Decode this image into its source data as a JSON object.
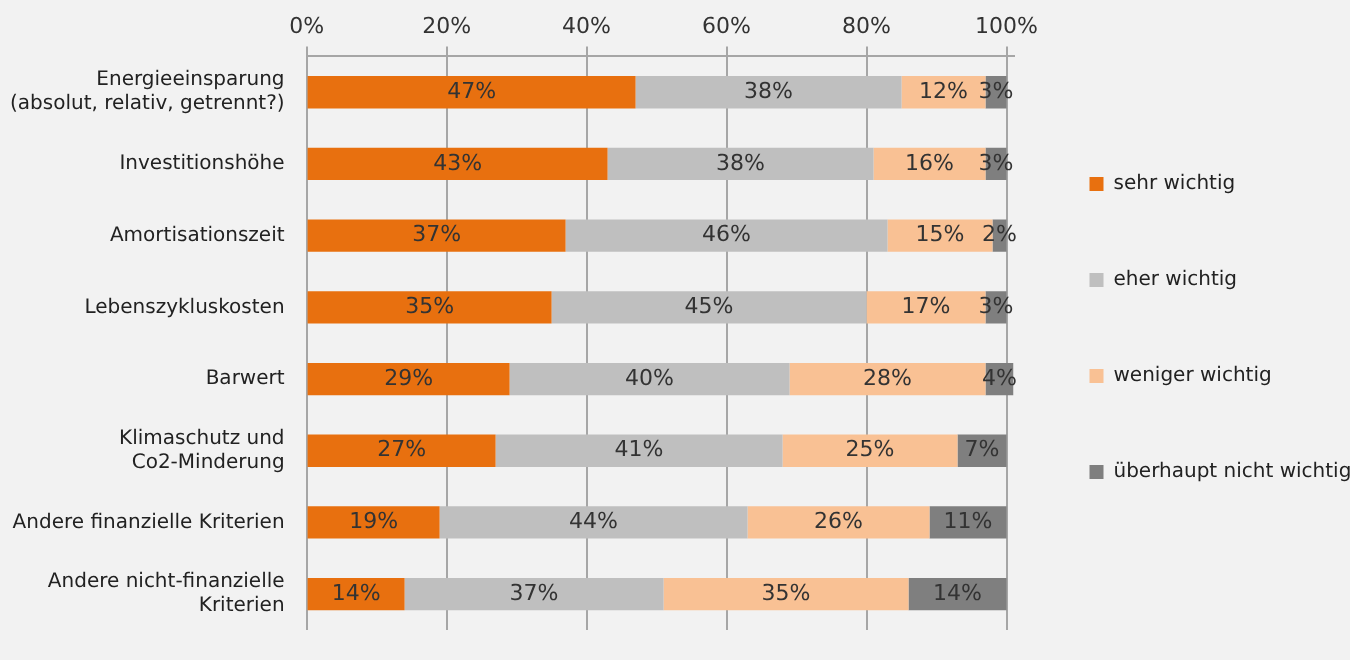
{
  "chart_data": {
    "type": "bar",
    "orientation": "horizontal",
    "stacked": true,
    "categories": [
      "Energieeinsparung (absolut, relativ, getrennt?)",
      "Investitionshöhe",
      "Amortisationszeit",
      "Lebenszykluskosten",
      "Barwert",
      "Klimaschutz und Co2-Minderung",
      "Andere finanzielle Kriterien",
      "Andere nicht-finanzielle Kriterien"
    ],
    "series": [
      {
        "name": "sehr wichtig",
        "color": "#e8700f",
        "values": [
          47,
          43,
          37,
          35,
          29,
          27,
          19,
          14
        ],
        "value_labels": [
          "47%",
          "43%",
          "37%",
          "35%",
          "29%",
          "27%",
          "19%",
          "14%"
        ]
      },
      {
        "name": "eher wichtig",
        "color": "#bfbfbf",
        "values": [
          38,
          38,
          46,
          45,
          40,
          41,
          44,
          37
        ],
        "value_labels": [
          "38%",
          "38%",
          "46%",
          "45%",
          "40%",
          "41%",
          "44%",
          "37%"
        ]
      },
      {
        "name": "weniger wichtig",
        "color": "#f9c194",
        "values": [
          12,
          16,
          15,
          17,
          28,
          25,
          26,
          35
        ],
        "value_labels": [
          "12%",
          "16%",
          "15%",
          "17%",
          "28%",
          "25%",
          "26%",
          "35%"
        ]
      },
      {
        "name": "überhaupt nicht wichtig",
        "color": "#7f7f7f",
        "values": [
          3,
          3,
          2,
          3,
          4,
          7,
          11,
          14
        ],
        "value_labels": [
          "3%",
          "3%",
          "2%",
          "3%",
          "4%",
          "7%",
          "11%",
          "14%"
        ]
      }
    ],
    "xlim": [
      0,
      101
    ],
    "xticks": [
      {
        "value": 0,
        "label": "0%"
      },
      {
        "value": 20,
        "label": "20%"
      },
      {
        "value": 40,
        "label": "40%"
      },
      {
        "value": 60,
        "label": "60%"
      },
      {
        "value": 80,
        "label": "80%"
      },
      {
        "value": 100,
        "label": "100%"
      }
    ],
    "grid": "x",
    "legend": "right"
  }
}
